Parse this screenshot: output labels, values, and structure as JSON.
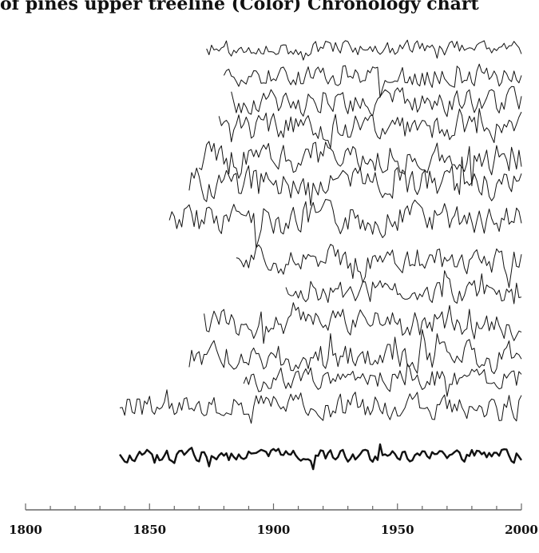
{
  "caption": "of pines upper treeline (Color) Chronology chart",
  "chart_data": {
    "type": "line",
    "title": "",
    "xlabel": "",
    "ylabel": "",
    "xlim": [
      1800,
      2000
    ],
    "x_ticks": [
      "1800",
      "1850",
      "1900",
      "1950",
      "2000"
    ],
    "grid": false,
    "series": [
      {
        "start": 1873,
        "end": 2000,
        "base": 0.065,
        "amp": 0.022,
        "seed": 1
      },
      {
        "start": 1880,
        "end": 2000,
        "base": 0.125,
        "amp": 0.03,
        "seed": 2
      },
      {
        "start": 1883,
        "end": 2000,
        "base": 0.175,
        "amp": 0.035,
        "seed": 3
      },
      {
        "start": 1878,
        "end": 2000,
        "base": 0.225,
        "amp": 0.038,
        "seed": 4
      },
      {
        "start": 1870,
        "end": 2000,
        "base": 0.285,
        "amp": 0.045,
        "seed": 5
      },
      {
        "start": 1866,
        "end": 2000,
        "base": 0.34,
        "amp": 0.045,
        "seed": 6
      },
      {
        "start": 1858,
        "end": 2000,
        "base": 0.41,
        "amp": 0.045,
        "seed": 7
      },
      {
        "start": 1885,
        "end": 2000,
        "base": 0.495,
        "amp": 0.04,
        "seed": 8
      },
      {
        "start": 1905,
        "end": 2000,
        "base": 0.56,
        "amp": 0.03,
        "seed": 9
      },
      {
        "start": 1872,
        "end": 2000,
        "base": 0.625,
        "amp": 0.04,
        "seed": 10
      },
      {
        "start": 1866,
        "end": 2000,
        "base": 0.69,
        "amp": 0.04,
        "seed": 11
      },
      {
        "start": 1888,
        "end": 2000,
        "base": 0.735,
        "amp": 0.03,
        "seed": 12
      },
      {
        "start": 1838,
        "end": 2000,
        "base": 0.79,
        "amp": 0.035,
        "seed": 13
      },
      {
        "start": 1838,
        "end": 2000,
        "base": 0.89,
        "amp": 0.018,
        "seed": 14,
        "bold": true
      }
    ]
  }
}
